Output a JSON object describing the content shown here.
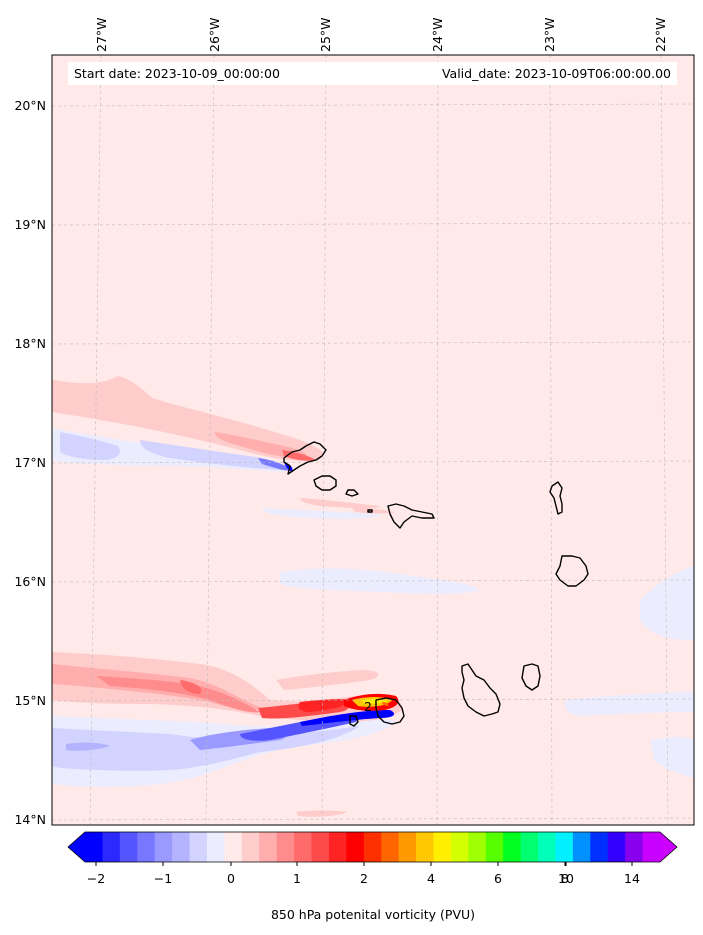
{
  "header": {
    "start_date": "Start date: 2023-10-09_00:00:00",
    "valid_date": "Valid_date: 2023-10-09T06:00:00.00"
  },
  "map": {
    "lon_labels": [
      "27°W",
      "26°W",
      "25°W",
      "24°W",
      "23°W",
      "22°W"
    ],
    "lat_labels": [
      "20°N",
      "19°N",
      "18°N",
      "17°N",
      "16°N",
      "15°N",
      "14°N"
    ],
    "background_color": "#ffe9e9",
    "contour_label": "2",
    "islands": [
      "Santo Antão",
      "São Vicente",
      "Santa Luzia",
      "São Nicolau",
      "Sal",
      "Boa Vista",
      "Maio",
      "Santiago",
      "Fogo",
      "Brava"
    ]
  },
  "colorbar": {
    "title": "850 hPa potenital vorticity (PVU)",
    "tick_labels": [
      "−2",
      "−1",
      "0",
      "1",
      "2",
      "4",
      "6",
      "8",
      "10",
      "14"
    ],
    "colors": [
      "#0000ff",
      "#2a2aff",
      "#5555ff",
      "#7777ff",
      "#9999ff",
      "#b3b3ff",
      "#d3d3ff",
      "#ececff",
      "#ffe9e9",
      "#ffcccc",
      "#ffadad",
      "#ff8c8c",
      "#ff6b6b",
      "#ff4a4a",
      "#ff2424",
      "#ff0000",
      "#ff3000",
      "#ff6600",
      "#ff9900",
      "#ffc800",
      "#fff000",
      "#d4ff00",
      "#a0ff00",
      "#55ff00",
      "#00ff20",
      "#00ff70",
      "#00ffb8",
      "#00f0ff",
      "#0090ff",
      "#0030ff",
      "#3300ff",
      "#8800ee",
      "#c800ff"
    ],
    "extend_min_color": "#0000ff",
    "extend_max_color": "#cc00ff"
  }
}
